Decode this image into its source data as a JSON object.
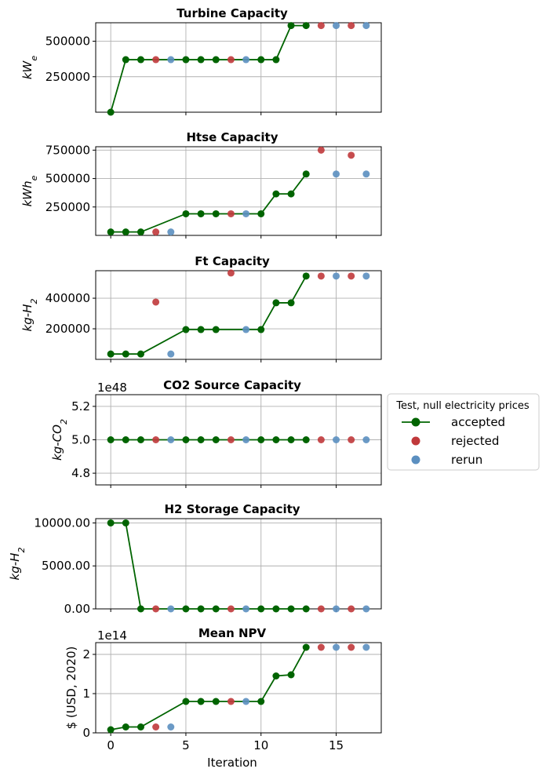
{
  "figure": {
    "xlabel": "Iteration",
    "xticks": [
      0,
      5,
      10,
      15
    ],
    "xlim": [
      -1,
      18
    ],
    "colors": {
      "accepted": "#006400",
      "rejected": "#c0393b",
      "rerun": "#5b8fc0",
      "grid": "#b0b0b0"
    }
  },
  "legend": {
    "title": "Test, null electricity prices",
    "entries": [
      {
        "key": "accepted",
        "label": "accepted"
      },
      {
        "key": "rejected",
        "label": "rejected"
      },
      {
        "key": "rerun",
        "label": "rerun"
      }
    ]
  },
  "chart_data": [
    {
      "type": "line",
      "title": "Turbine Capacity",
      "ylabel": "kW_e",
      "offset_label": "",
      "ylim": [
        0,
        630000
      ],
      "yticks": [
        {
          "v": 250000,
          "label": "250000"
        },
        {
          "v": 500000,
          "label": "500000"
        }
      ],
      "accepted": [
        [
          0,
          0
        ],
        [
          1,
          370000
        ],
        [
          2,
          370000
        ],
        [
          5,
          370000
        ],
        [
          6,
          370000
        ],
        [
          7,
          370000
        ],
        [
          10,
          370000
        ],
        [
          11,
          370000
        ],
        [
          12,
          610000
        ],
        [
          13,
          610000
        ]
      ],
      "rejected": [
        [
          3,
          370000
        ],
        [
          8,
          370000
        ],
        [
          14,
          610000
        ],
        [
          16,
          610000
        ]
      ],
      "rerun": [
        [
          4,
          370000
        ],
        [
          9,
          370000
        ],
        [
          15,
          610000
        ],
        [
          17,
          610000
        ]
      ]
    },
    {
      "type": "line",
      "title": "Htse Capacity",
      "ylabel": "kWh_e",
      "offset_label": "",
      "ylim": [
        0,
        780000
      ],
      "yticks": [
        {
          "v": 250000,
          "label": "250000"
        },
        {
          "v": 500000,
          "label": "500000"
        },
        {
          "v": 750000,
          "label": "750000"
        }
      ],
      "accepted": [
        [
          0,
          30000
        ],
        [
          1,
          30000
        ],
        [
          2,
          30000
        ],
        [
          5,
          190000
        ],
        [
          6,
          190000
        ],
        [
          7,
          190000
        ],
        [
          10,
          190000
        ],
        [
          11,
          365000
        ],
        [
          12,
          365000
        ],
        [
          13,
          540000
        ]
      ],
      "rejected": [
        [
          3,
          30000
        ],
        [
          8,
          190000
        ],
        [
          14,
          750000
        ],
        [
          16,
          705000
        ]
      ],
      "rerun": [
        [
          4,
          30000
        ],
        [
          9,
          190000
        ],
        [
          15,
          540000
        ],
        [
          17,
          540000
        ]
      ]
    },
    {
      "type": "line",
      "title": "Ft Capacity",
      "ylabel": "kg-H_2",
      "offset_label": "",
      "ylim": [
        0,
        580000
      ],
      "yticks": [
        {
          "v": 200000,
          "label": "200000"
        },
        {
          "v": 400000,
          "label": "400000"
        }
      ],
      "accepted": [
        [
          0,
          35000
        ],
        [
          1,
          35000
        ],
        [
          2,
          35000
        ],
        [
          5,
          195000
        ],
        [
          6,
          195000
        ],
        [
          7,
          195000
        ],
        [
          10,
          195000
        ],
        [
          11,
          370000
        ],
        [
          12,
          370000
        ],
        [
          13,
          545000
        ]
      ],
      "rejected": [
        [
          3,
          375000
        ],
        [
          8,
          565000
        ],
        [
          14,
          545000
        ],
        [
          16,
          545000
        ]
      ],
      "rerun": [
        [
          4,
          35000
        ],
        [
          9,
          195000
        ],
        [
          15,
          545000
        ],
        [
          17,
          545000
        ]
      ]
    },
    {
      "type": "line",
      "title": "CO2 Source Capacity",
      "ylabel": "kg-CO_2",
      "offset_label": "1e48",
      "ylim": [
        4.73,
        5.27
      ],
      "yticks": [
        {
          "v": 4.8,
          "label": "4.8"
        },
        {
          "v": 5.0,
          "label": "5.0"
        },
        {
          "v": 5.2,
          "label": "5.2"
        }
      ],
      "accepted": [
        [
          0,
          5.0
        ],
        [
          1,
          5.0
        ],
        [
          2,
          5.0
        ],
        [
          5,
          5.0
        ],
        [
          6,
          5.0
        ],
        [
          7,
          5.0
        ],
        [
          10,
          5.0
        ],
        [
          11,
          5.0
        ],
        [
          12,
          5.0
        ],
        [
          13,
          5.0
        ]
      ],
      "rejected": [
        [
          3,
          5.0
        ],
        [
          8,
          5.0
        ],
        [
          14,
          5.0
        ],
        [
          16,
          5.0
        ]
      ],
      "rerun": [
        [
          4,
          5.0
        ],
        [
          9,
          5.0
        ],
        [
          15,
          5.0
        ],
        [
          17,
          5.0
        ]
      ]
    },
    {
      "type": "line",
      "title": "H2 Storage Capacity",
      "ylabel": "kg-H_2",
      "offset_label": "",
      "ylim": [
        0,
        10500
      ],
      "yticks": [
        {
          "v": 0,
          "label": "0.00"
        },
        {
          "v": 5000,
          "label": "5000.00"
        },
        {
          "v": 10000,
          "label": "10000.00"
        }
      ],
      "accepted": [
        [
          0,
          10000
        ],
        [
          1,
          10000
        ],
        [
          2,
          0
        ],
        [
          5,
          0
        ],
        [
          6,
          0
        ],
        [
          7,
          0
        ],
        [
          10,
          0
        ],
        [
          11,
          0
        ],
        [
          12,
          0
        ],
        [
          13,
          0
        ]
      ],
      "rejected": [
        [
          3,
          0
        ],
        [
          8,
          0
        ],
        [
          14,
          0
        ],
        [
          16,
          0
        ]
      ],
      "rerun": [
        [
          4,
          0
        ],
        [
          9,
          0
        ],
        [
          15,
          0
        ],
        [
          17,
          0
        ]
      ]
    },
    {
      "type": "line",
      "title": "Mean NPV",
      "ylabel": "$ (USD, 2020)",
      "offset_label": "1e14",
      "ylim": [
        0,
        2.3
      ],
      "yticks": [
        {
          "v": 0,
          "label": "0"
        },
        {
          "v": 1,
          "label": "1"
        },
        {
          "v": 2,
          "label": "2"
        }
      ],
      "accepted": [
        [
          0,
          0.08
        ],
        [
          1,
          0.15
        ],
        [
          2,
          0.15
        ],
        [
          5,
          0.8
        ],
        [
          6,
          0.8
        ],
        [
          7,
          0.8
        ],
        [
          10,
          0.8
        ],
        [
          11,
          1.45
        ],
        [
          12,
          1.48
        ],
        [
          13,
          2.18
        ]
      ],
      "rejected": [
        [
          3,
          0.15
        ],
        [
          8,
          0.8
        ],
        [
          14,
          2.18
        ],
        [
          16,
          2.18
        ]
      ],
      "rerun": [
        [
          4,
          0.15
        ],
        [
          9,
          0.8
        ],
        [
          15,
          2.18
        ],
        [
          17,
          2.18
        ]
      ]
    }
  ]
}
